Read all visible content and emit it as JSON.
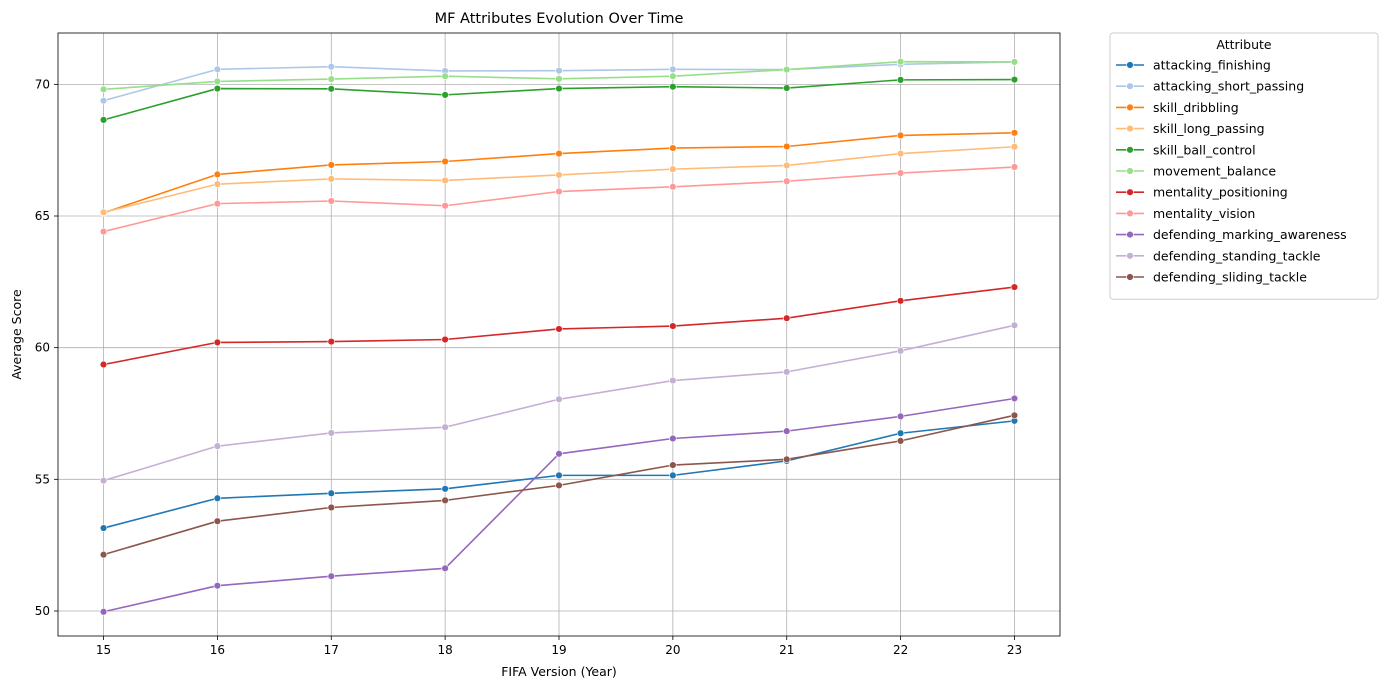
{
  "chart_data": {
    "type": "line",
    "title": "MF Attributes Evolution Over Time",
    "xlabel": "FIFA Version (Year)",
    "ylabel": "Average Score",
    "x": [
      15,
      16,
      17,
      18,
      19,
      20,
      21,
      22,
      23
    ],
    "xlim": [
      14.6,
      23.4
    ],
    "ylim": [
      49.05,
      71.95
    ],
    "yticks": [
      50,
      55,
      60,
      65,
      70
    ],
    "grid": true,
    "marker": "circle",
    "legend_title": "Attribute",
    "legend_position": "outside-top-right",
    "series": [
      {
        "name": "attacking_finishing",
        "color": "#1f77b4",
        "values": [
          53.15,
          54.28,
          54.47,
          54.64,
          55.15,
          55.15,
          55.7,
          56.75,
          57.22
        ]
      },
      {
        "name": "attacking_short_passing",
        "color": "#aec7e8",
        "values": [
          69.38,
          70.57,
          70.67,
          70.51,
          70.52,
          70.57,
          70.56,
          70.76,
          70.85
        ]
      },
      {
        "name": "skill_dribbling",
        "color": "#ff7f0e",
        "values": [
          65.12,
          66.58,
          66.94,
          67.07,
          67.37,
          67.58,
          67.64,
          68.06,
          68.16
        ]
      },
      {
        "name": "skill_long_passing",
        "color": "#ffbb78",
        "values": [
          65.14,
          66.21,
          66.41,
          66.35,
          66.56,
          66.78,
          66.92,
          67.37,
          67.63
        ]
      },
      {
        "name": "skill_ball_control",
        "color": "#2ca02c",
        "values": [
          68.65,
          69.84,
          69.83,
          69.6,
          69.84,
          69.91,
          69.86,
          70.17,
          70.18
        ]
      },
      {
        "name": "movement_balance",
        "color": "#98df8a",
        "values": [
          69.81,
          70.11,
          70.2,
          70.31,
          70.21,
          70.31,
          70.56,
          70.86,
          70.85
        ]
      },
      {
        "name": "mentality_positioning",
        "color": "#d62728",
        "values": [
          59.36,
          60.2,
          60.23,
          60.31,
          60.71,
          60.82,
          61.12,
          61.78,
          62.3
        ]
      },
      {
        "name": "mentality_vision",
        "color": "#ff9896",
        "values": [
          64.41,
          65.47,
          65.57,
          65.39,
          65.93,
          66.11,
          66.32,
          66.63,
          66.86
        ]
      },
      {
        "name": "defending_marking_awareness",
        "color": "#9467bd",
        "values": [
          49.97,
          50.96,
          51.32,
          51.62,
          55.97,
          56.55,
          56.83,
          57.39,
          58.07
        ]
      },
      {
        "name": "defending_standing_tackle",
        "color": "#c5b0d5",
        "values": [
          54.95,
          56.26,
          56.76,
          56.98,
          58.04,
          58.75,
          59.08,
          59.88,
          60.85
        ]
      },
      {
        "name": "defending_sliding_tackle",
        "color": "#8c564b",
        "values": [
          52.14,
          53.41,
          53.93,
          54.2,
          54.77,
          55.54,
          55.76,
          56.46,
          57.43
        ]
      }
    ]
  }
}
